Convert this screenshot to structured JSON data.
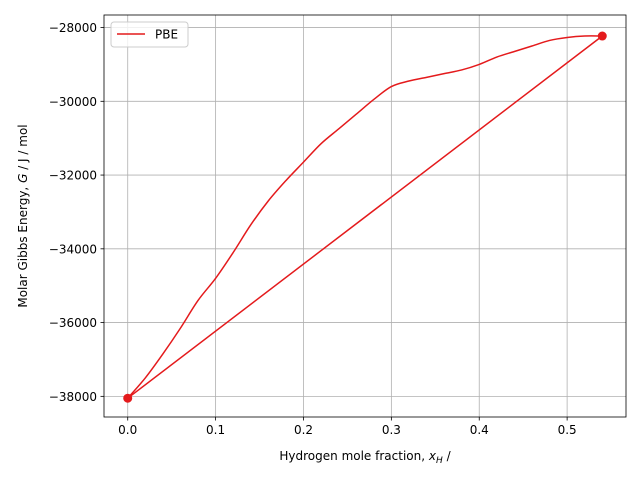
{
  "chart_data": {
    "type": "line",
    "title": "",
    "xlabel": {
      "prefix": "Hydrogen mole fraction, ",
      "symbol": "x",
      "subscript": "H",
      "suffix": " /"
    },
    "ylabel": {
      "prefix": "Molar Gibbs Energy, ",
      "symbol": "G",
      "suffix": " / J / mol"
    },
    "xlim": [
      -0.027,
      0.567
    ],
    "ylim": [
      -38560,
      -27660
    ],
    "xticks": [
      0.0,
      0.1,
      0.2,
      0.3,
      0.4,
      0.5
    ],
    "xtick_labels": [
      "0.0",
      "0.1",
      "0.2",
      "0.3",
      "0.4",
      "0.5"
    ],
    "yticks": [
      -38000,
      -36000,
      -34000,
      -32000,
      -30000,
      -28000
    ],
    "ytick_labels": [
      "−38000",
      "−36000",
      "−34000",
      "−32000",
      "−30000",
      "−28000"
    ],
    "grid": true,
    "legend_position": "upper-left",
    "series": [
      {
        "name": "PBE",
        "color": "#e41a1c",
        "x": [
          0.0,
          0.02,
          0.04,
          0.06,
          0.08,
          0.1,
          0.12,
          0.14,
          0.16,
          0.18,
          0.2,
          0.22,
          0.24,
          0.26,
          0.28,
          0.3,
          0.32,
          0.34,
          0.36,
          0.38,
          0.4,
          0.42,
          0.44,
          0.46,
          0.48,
          0.5,
          0.52,
          0.54
        ],
        "y": [
          -38050,
          -37500,
          -36850,
          -36150,
          -35400,
          -34800,
          -34100,
          -33350,
          -32700,
          -32150,
          -31650,
          -31150,
          -30750,
          -30350,
          -29950,
          -29600,
          -29450,
          -29350,
          -29250,
          -29150,
          -29000,
          -28800,
          -28650,
          -28500,
          -28350,
          -28270,
          -28230,
          -28230
        ]
      },
      {
        "name": "",
        "color": "#e41a1c",
        "x": [
          0.0,
          0.54
        ],
        "y": [
          -38050,
          -28230
        ]
      }
    ],
    "markers": [
      {
        "x": 0.0,
        "y": -38050
      },
      {
        "x": 0.54,
        "y": -28230
      }
    ]
  }
}
